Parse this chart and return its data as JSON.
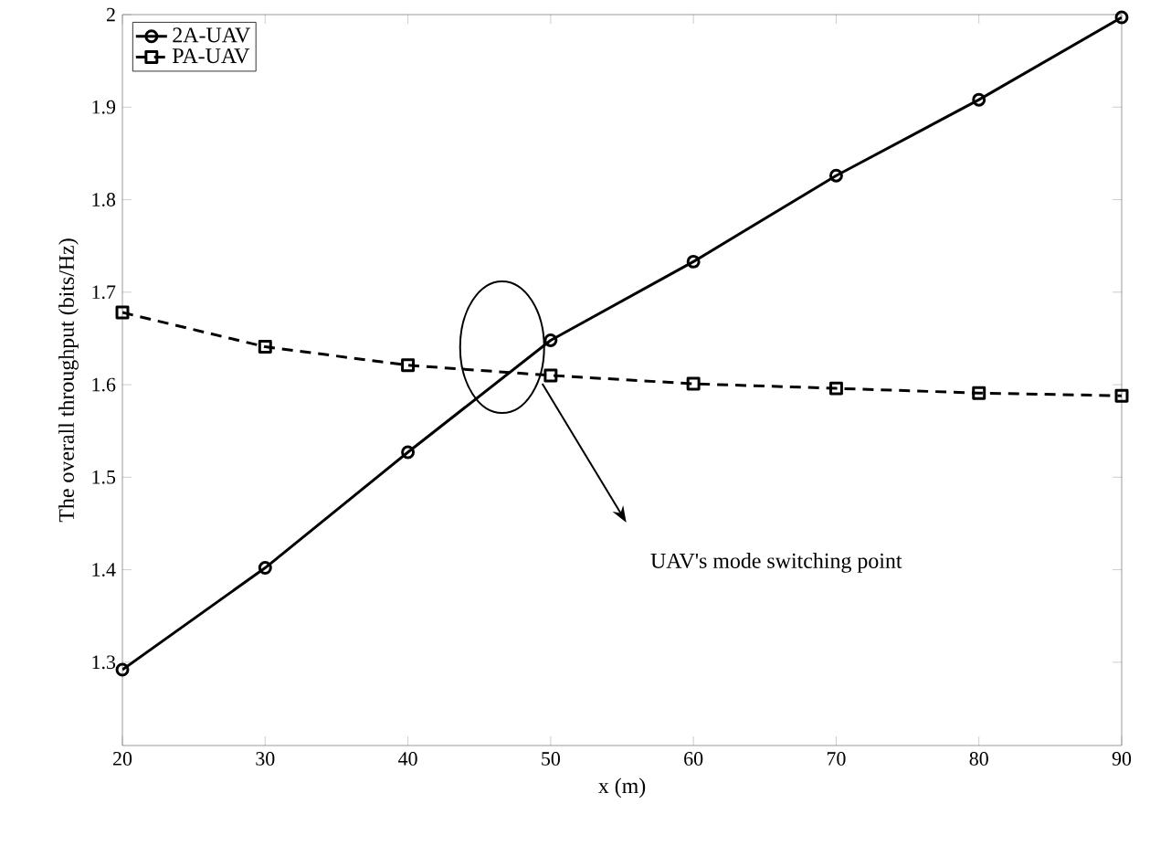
{
  "chart_data": {
    "type": "line",
    "xlabel": "x (m)",
    "ylabel": "The overall throughput (bits/Hz)",
    "x": [
      20,
      30,
      40,
      50,
      60,
      70,
      80,
      90
    ],
    "series": [
      {
        "name": "2A-UAV",
        "color": "#000000",
        "marker": "circle",
        "line_style": "solid",
        "values": [
          1.292,
          1.402,
          1.527,
          1.648,
          1.733,
          1.826,
          1.908,
          1.997
        ]
      },
      {
        "name": "PA-UAV",
        "color": "#000000",
        "marker": "square",
        "line_style": "dashed",
        "values": [
          1.678,
          1.641,
          1.621,
          1.61,
          1.601,
          1.596,
          1.591,
          1.588
        ]
      }
    ],
    "xlim": [
      20,
      90
    ],
    "ylim": [
      1.21,
      2
    ],
    "xticks": [
      20,
      30,
      40,
      50,
      60,
      70,
      80,
      90
    ],
    "yticks": [
      1.3,
      1.4,
      1.5,
      1.6,
      1.7,
      1.8,
      1.9,
      2
    ],
    "annotations": [
      "UAV's mode switching point"
    ],
    "legend": "top left",
    "grid": false
  }
}
